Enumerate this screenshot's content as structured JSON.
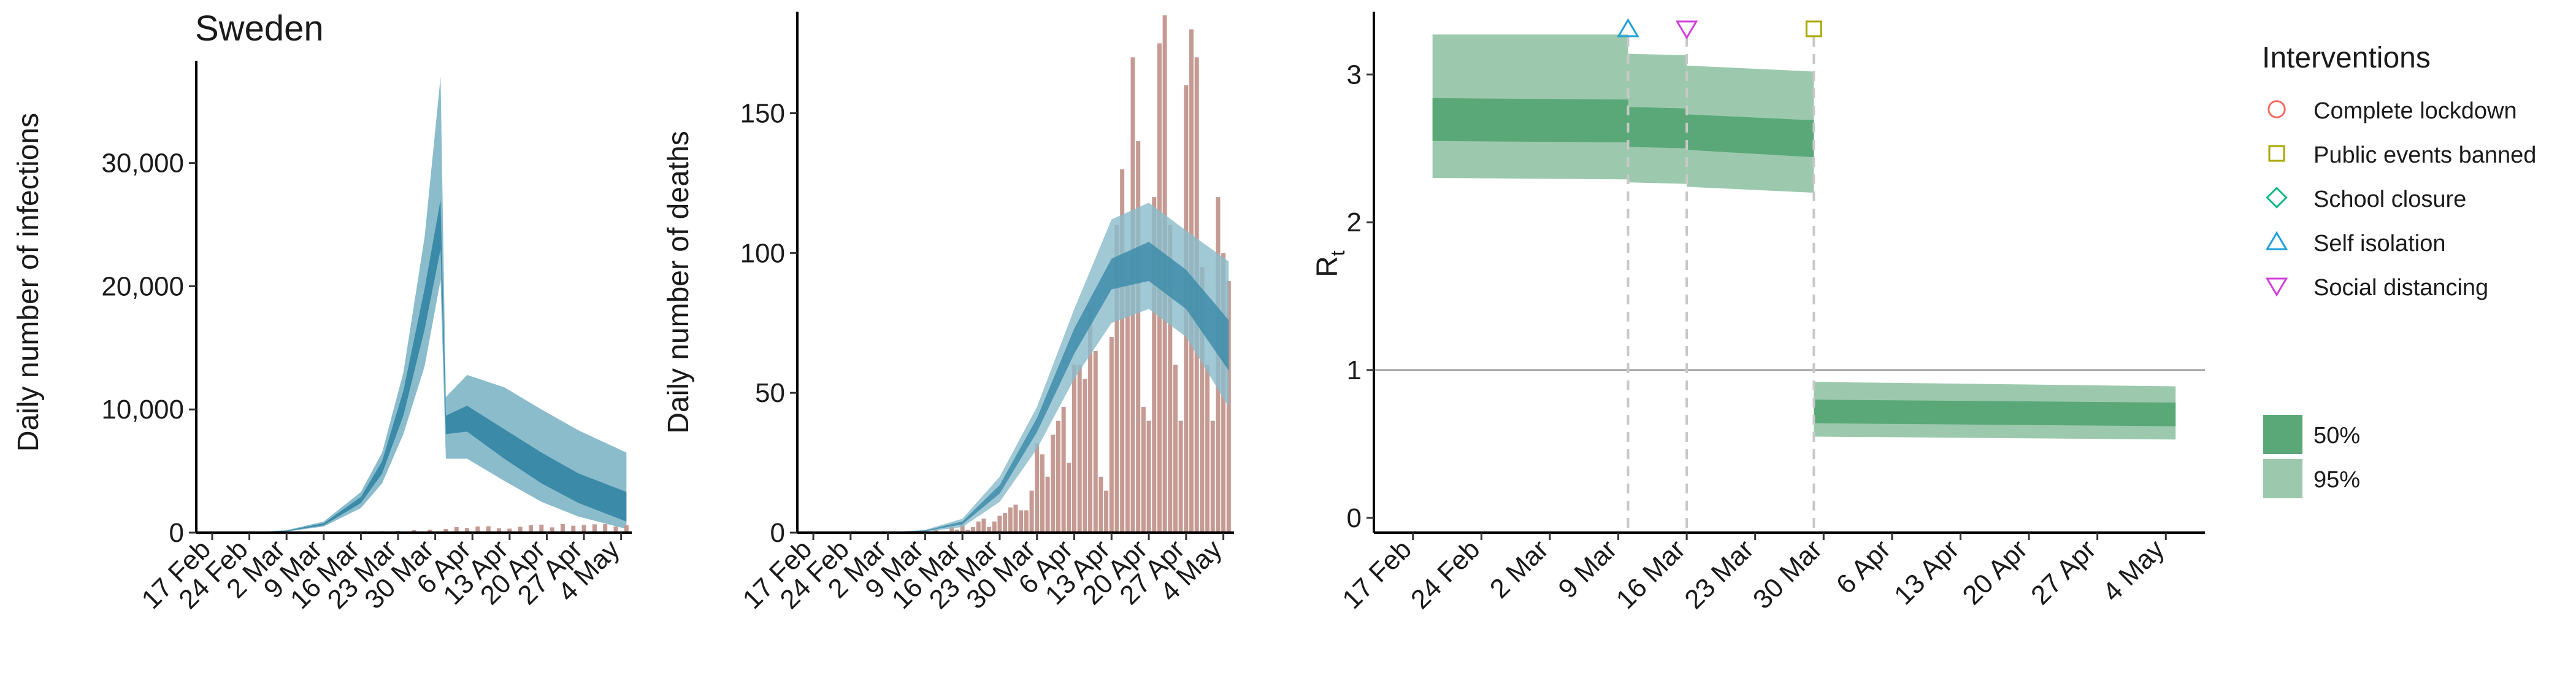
{
  "chart_data": [
    {
      "type": "area",
      "title": "Sweden",
      "xlabel": "",
      "ylabel": "Daily number of infections",
      "ylim": [
        0,
        38000
      ],
      "x_range": [
        "2020-02-14",
        "2020-05-06"
      ],
      "x_ticks": [
        "2020-02-17",
        "2020-02-24",
        "2020-03-02",
        "2020-03-09",
        "2020-03-16",
        "2020-03-23",
        "2020-03-30",
        "2020-04-06",
        "2020-04-13",
        "2020-04-20",
        "2020-04-27",
        "2020-05-04"
      ],
      "x_tick_labels": [
        "17 Feb",
        "24 Feb",
        "2 Mar",
        "9 Mar",
        "16 Mar",
        "23 Mar",
        "30 Mar",
        "6 Apr",
        "13 Apr",
        "20 Apr",
        "27 Apr",
        "4 May"
      ],
      "y_ticks": [
        0,
        10000,
        20000,
        30000
      ],
      "y_tick_labels": [
        "0",
        "10,000",
        "20,000",
        "30,000"
      ],
      "bands": [
        {
          "label": "95%",
          "color": "#8bbccc",
          "x": [
            "2020-02-17",
            "2020-02-24",
            "2020-03-02",
            "2020-03-09",
            "2020-03-16",
            "2020-03-20",
            "2020-03-24",
            "2020-03-28",
            "2020-03-31",
            "2020-04-01",
            "2020-04-05",
            "2020-04-12",
            "2020-04-19",
            "2020-04-26",
            "2020-05-05"
          ],
          "lower": [
            0,
            5,
            90,
            500,
            2000,
            4000,
            8000,
            13500,
            20500,
            6000,
            6000,
            4200,
            2500,
            1300,
            300
          ],
          "upper": [
            0,
            20,
            200,
            900,
            3300,
            6500,
            13000,
            24000,
            37000,
            11000,
            12800,
            11800,
            10000,
            8300,
            6500
          ]
        },
        {
          "label": "50%",
          "color": "#3a8aa8",
          "x": [
            "2020-02-17",
            "2020-02-24",
            "2020-03-02",
            "2020-03-09",
            "2020-03-16",
            "2020-03-20",
            "2020-03-24",
            "2020-03-28",
            "2020-03-31",
            "2020-04-01",
            "2020-04-05",
            "2020-04-12",
            "2020-04-19",
            "2020-04-26",
            "2020-05-05"
          ],
          "lower": [
            0,
            8,
            120,
            600,
            2400,
            4800,
            9500,
            16500,
            23000,
            8000,
            8200,
            6000,
            4000,
            2400,
            900
          ],
          "upper": [
            0,
            14,
            160,
            760,
            2900,
            5800,
            11500,
            19800,
            27000,
            9500,
            10300,
            8400,
            6500,
            4800,
            3300
          ]
        }
      ],
      "bars": {
        "color": "#c49a92",
        "label": "observed daily cases",
        "x": [
          "2020-03-01",
          "2020-03-05",
          "2020-03-08",
          "2020-03-11",
          "2020-03-14",
          "2020-03-17",
          "2020-03-20",
          "2020-03-23",
          "2020-03-26",
          "2020-03-29",
          "2020-04-01",
          "2020-04-03",
          "2020-04-05",
          "2020-04-07",
          "2020-04-09",
          "2020-04-11",
          "2020-04-13",
          "2020-04-15",
          "2020-04-17",
          "2020-04-19",
          "2020-04-21",
          "2020-04-23",
          "2020-04-25",
          "2020-04-27",
          "2020-04-29",
          "2020-05-01",
          "2020-05-03",
          "2020-05-05"
        ],
        "values": [
          5,
          30,
          60,
          90,
          70,
          80,
          120,
          140,
          200,
          240,
          300,
          450,
          380,
          500,
          520,
          350,
          330,
          480,
          600,
          650,
          430,
          700,
          560,
          620,
          680,
          700,
          500,
          600
        ]
      }
    },
    {
      "type": "bar",
      "title": "",
      "xlabel": "",
      "ylabel": "Daily number of deaths",
      "ylim": [
        0,
        185
      ],
      "x_range": [
        "2020-02-14",
        "2020-05-06"
      ],
      "x_ticks": [
        "2020-02-17",
        "2020-02-24",
        "2020-03-02",
        "2020-03-09",
        "2020-03-16",
        "2020-03-23",
        "2020-03-30",
        "2020-04-06",
        "2020-04-13",
        "2020-04-20",
        "2020-04-27",
        "2020-05-04"
      ],
      "x_tick_labels": [
        "17 Feb",
        "24 Feb",
        "2 Mar",
        "9 Mar",
        "16 Mar",
        "23 Mar",
        "30 Mar",
        "6 Apr",
        "13 Apr",
        "20 Apr",
        "27 Apr",
        "4 May"
      ],
      "y_ticks": [
        0,
        50,
        100,
        150
      ],
      "y_tick_labels": [
        "0",
        "50",
        "100",
        "150"
      ],
      "bands": [
        {
          "label": "95%",
          "color": "#8bbccc",
          "x": [
            "2020-03-01",
            "2020-03-09",
            "2020-03-16",
            "2020-03-23",
            "2020-03-30",
            "2020-04-06",
            "2020-04-13",
            "2020-04-20",
            "2020-04-27",
            "2020-05-05"
          ],
          "lower": [
            0,
            0.3,
            2,
            11,
            30,
            55,
            75,
            80,
            70,
            45
          ],
          "upper": [
            0,
            1,
            5,
            20,
            45,
            80,
            112,
            118,
            108,
            97
          ]
        },
        {
          "label": "50%",
          "color": "#3a8aa8",
          "x": [
            "2020-03-01",
            "2020-03-09",
            "2020-03-16",
            "2020-03-23",
            "2020-03-30",
            "2020-04-06",
            "2020-04-13",
            "2020-04-20",
            "2020-04-27",
            "2020-05-05"
          ],
          "lower": [
            0,
            0.5,
            3,
            14,
            36,
            64,
            87,
            90,
            80,
            58
          ],
          "upper": [
            0,
            0.8,
            4,
            17,
            41,
            73,
            98,
            104,
            94,
            76
          ]
        }
      ],
      "bars": {
        "color": "#c49a92",
        "label": "observed daily deaths",
        "x": [
          "2020-03-11",
          "2020-03-12",
          "2020-03-13",
          "2020-03-14",
          "2020-03-15",
          "2020-03-16",
          "2020-03-17",
          "2020-03-18",
          "2020-03-19",
          "2020-03-20",
          "2020-03-21",
          "2020-03-22",
          "2020-03-23",
          "2020-03-24",
          "2020-03-25",
          "2020-03-26",
          "2020-03-27",
          "2020-03-28",
          "2020-03-29",
          "2020-03-30",
          "2020-03-31",
          "2020-04-01",
          "2020-04-02",
          "2020-04-03",
          "2020-04-04",
          "2020-04-05",
          "2020-04-06",
          "2020-04-07",
          "2020-04-08",
          "2020-04-09",
          "2020-04-10",
          "2020-04-11",
          "2020-04-12",
          "2020-04-13",
          "2020-04-14",
          "2020-04-15",
          "2020-04-16",
          "2020-04-17",
          "2020-04-18",
          "2020-04-19",
          "2020-04-20",
          "2020-04-21",
          "2020-04-22",
          "2020-04-23",
          "2020-04-24",
          "2020-04-25",
          "2020-04-26",
          "2020-04-27",
          "2020-04-28",
          "2020-04-29",
          "2020-04-30",
          "2020-05-01",
          "2020-05-02",
          "2020-05-03",
          "2020-05-04",
          "2020-05-05"
        ],
        "values": [
          1,
          0,
          0,
          2,
          1,
          3,
          1,
          2,
          4,
          5,
          2,
          4,
          6,
          7,
          9,
          10,
          8,
          8,
          15,
          32,
          28,
          20,
          35,
          40,
          45,
          25,
          60,
          60,
          55,
          80,
          65,
          20,
          15,
          70,
          110,
          130,
          90,
          170,
          140,
          45,
          40,
          120,
          175,
          185,
          110,
          60,
          40,
          160,
          180,
          170,
          95,
          60,
          40,
          120,
          100,
          90
        ]
      }
    },
    {
      "type": "area",
      "title": "",
      "xlabel": "",
      "ylabel": "Rt",
      "ylim": [
        -0.1,
        3.4
      ],
      "x_range": [
        "2020-02-13",
        "2020-05-08"
      ],
      "x_ticks": [
        "2020-02-17",
        "2020-02-24",
        "2020-03-02",
        "2020-03-09",
        "2020-03-16",
        "2020-03-23",
        "2020-03-30",
        "2020-04-06",
        "2020-04-13",
        "2020-04-20",
        "2020-04-27",
        "2020-05-04"
      ],
      "x_tick_labels": [
        "17 Feb",
        "24 Feb",
        "2 Mar",
        "9 Mar",
        "16 Mar",
        "23 Mar",
        "30 Mar",
        "6 Apr",
        "13 Apr",
        "20 Apr",
        "27 Apr",
        "4 May"
      ],
      "y_ticks": [
        0,
        1,
        2,
        3
      ],
      "y_tick_labels": [
        "0",
        "1",
        "2",
        "3"
      ],
      "reference_line": 1,
      "segments": [
        {
          "start": "2020-02-19",
          "end": "2020-03-10",
          "q95": [
            2.3,
            3.27
          ],
          "q50": [
            2.55,
            2.84
          ],
          "q95_end": [
            2.29,
            3.27
          ],
          "q50_end": [
            2.54,
            2.83
          ]
        },
        {
          "start": "2020-03-10",
          "end": "2020-03-16",
          "q95": [
            2.27,
            3.14
          ],
          "q50": [
            2.51,
            2.78
          ],
          "q95_end": [
            2.26,
            3.13
          ],
          "q50_end": [
            2.5,
            2.77
          ]
        },
        {
          "start": "2020-03-16",
          "end": "2020-03-29",
          "q95": [
            2.24,
            3.06
          ],
          "q50": [
            2.49,
            2.73
          ],
          "q95_end": [
            2.2,
            3.02
          ],
          "q50_end": [
            2.44,
            2.69
          ]
        },
        {
          "start": "2020-03-29",
          "end": "2020-05-05",
          "q95": [
            0.55,
            0.92
          ],
          "q50": [
            0.64,
            0.8
          ],
          "q95_end": [
            0.53,
            0.89
          ],
          "q50_end": [
            0.62,
            0.78
          ]
        }
      ],
      "band_colors": {
        "q50": "#5aa878",
        "q95": "#9cc9ad"
      },
      "interventions": [
        {
          "name": "Self isolation",
          "date": "2020-03-10",
          "shape": "triangle-up",
          "color": "#20a0d8"
        },
        {
          "name": "Social distancing",
          "date": "2020-03-16",
          "shape": "triangle-down",
          "color": "#d040d8"
        },
        {
          "name": "Public events banned",
          "date": "2020-03-29",
          "shape": "square",
          "color": "#a8a800"
        }
      ]
    }
  ],
  "legend": {
    "title": "Interventions",
    "items": [
      {
        "label": "Complete lockdown",
        "shape": "circle",
        "color": "#f26b5f"
      },
      {
        "label": "Public events banned",
        "shape": "square",
        "color": "#a8a800"
      },
      {
        "label": "School closure",
        "shape": "diamond",
        "color": "#10b886"
      },
      {
        "label": "Self isolation",
        "shape": "triangle-up",
        "color": "#20a0d8"
      },
      {
        "label": "Social distancing",
        "shape": "triangle-down",
        "color": "#d040d8"
      }
    ],
    "fill_items": [
      {
        "label": "50%",
        "color": "#5aa878"
      },
      {
        "label": "95%",
        "color": "#9cc9ad"
      }
    ]
  }
}
